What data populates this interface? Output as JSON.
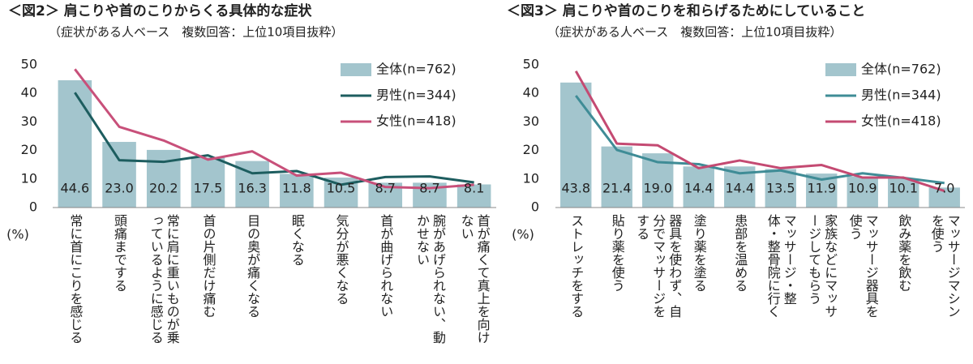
{
  "chart_data": [
    {
      "type": "combo",
      "title": "＜図2＞ 肩こりや首のこりからくる具体的な症状",
      "subtitle": "（症状がある人ベース　複数回答：上位10項目抜粋）",
      "y_label": "(%)",
      "categories": [
        "常に首にこりを感じる",
        "頭痛までする",
        "常に肩に重いものが乗っているように感じる",
        "首の片側だけ痛む",
        "目の奥が痛くなる",
        "眠くなる",
        "気分が悪くなる",
        "首が曲げられない",
        "腕があげられない、動かせない",
        "首が痛くて真上を向けない"
      ],
      "series": [
        {
          "name": "全体(n=762)",
          "mark": "bar",
          "color": "#a3c5cd",
          "values": [
            44.6,
            23.0,
            20.2,
            17.5,
            16.3,
            11.8,
            10.5,
            8.7,
            8.7,
            8.1
          ],
          "value_labels": [
            "44.6",
            "23.0",
            "20.2",
            "17.5",
            "16.3",
            "11.8",
            "10.5",
            "8.7",
            "8.7",
            "8.1"
          ]
        },
        {
          "name": "男性(n=344)",
          "mark": "line",
          "color": "#1d5d5f",
          "values": [
            40.3,
            16.6,
            16.0,
            18.3,
            12.0,
            12.8,
            8.0,
            10.7,
            10.9,
            8.8
          ]
        },
        {
          "name": "女性(n=418)",
          "mark": "line",
          "color": "#c8507a",
          "values": [
            48.5,
            28.3,
            23.5,
            16.8,
            19.7,
            11.2,
            12.2,
            7.2,
            6.8,
            8.0
          ]
        }
      ],
      "ylim": [
        0,
        50
      ],
      "yticks": [
        0,
        10,
        20,
        30,
        40,
        50
      ],
      "grid": false,
      "legend": "top-right"
    },
    {
      "type": "combo",
      "title": "＜図3＞ 肩こりや首のこりを和らげるためにしていること",
      "subtitle": "（症状がある人ベース　複数回答：上位10項目抜粋）",
      "y_label": "(%)",
      "categories": [
        "ストレッチをする",
        "貼り薬を使う",
        "器具を使わず、自分でマッサージをする",
        "塗り薬を塗る",
        "患部を温める",
        "マッサージ・整体・整骨院に行く",
        "家族などにマッサージしてもらう",
        "マッサージ器具を使う",
        "飲み薬を飲む",
        "マッサージマシンを使う"
      ],
      "series": [
        {
          "name": "全体(n=762)",
          "mark": "bar",
          "color": "#a3c5cd",
          "values": [
            43.8,
            21.4,
            19.0,
            14.4,
            14.4,
            13.5,
            11.9,
            10.9,
            10.1,
            7.0
          ],
          "value_labels": [
            "43.8",
            "21.4",
            "19.0",
            "14.4",
            "14.4",
            "13.5",
            "11.9",
            "10.9",
            "10.1",
            "7.0"
          ]
        },
        {
          "name": "男性(n=344)",
          "mark": "line",
          "color": "#3f8c96",
          "values": [
            39.2,
            20.2,
            15.9,
            15.2,
            12.0,
            13.0,
            9.8,
            12.0,
            10.4,
            8.6
          ]
        },
        {
          "name": "女性(n=418)",
          "mark": "line",
          "color": "#c44a72",
          "values": [
            47.8,
            22.4,
            21.8,
            13.8,
            16.5,
            13.8,
            14.9,
            10.5,
            10.5,
            5.8
          ]
        }
      ],
      "ylim": [
        0,
        50
      ],
      "yticks": [
        0,
        10,
        20,
        30,
        40,
        50
      ],
      "grid": false,
      "legend": "top-right"
    }
  ]
}
